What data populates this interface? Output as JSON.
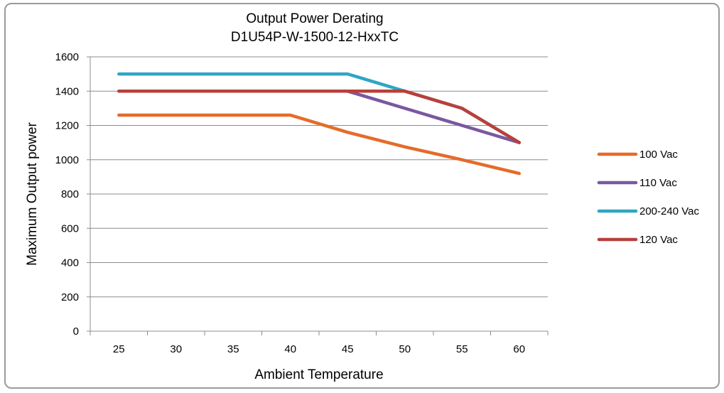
{
  "chart_data": {
    "type": "line",
    "title": "Output Power Derating",
    "subtitle": "D1U54P-W-1500-12-HxxTC",
    "xlabel": "Ambient Temperature",
    "ylabel": "Maximum Output power",
    "categories": [
      "25",
      "30",
      "35",
      "40",
      "45",
      "50",
      "55",
      "60"
    ],
    "ylim": [
      0,
      1600
    ],
    "yticks": [
      "0",
      "200",
      "400",
      "600",
      "800",
      "1000",
      "1200",
      "1400",
      "1600"
    ],
    "grid": "horizontal",
    "legend_position": "right",
    "series": [
      {
        "name": "100 Vac",
        "color": "#E46C2A",
        "values": [
          1260,
          1260,
          1260,
          1260,
          1160,
          1075,
          1000,
          920
        ]
      },
      {
        "name": "110 Vac",
        "color": "#7B57A0",
        "values": [
          1400,
          1400,
          1400,
          1400,
          1400,
          1300,
          1200,
          1100
        ]
      },
      {
        "name": "200-240 Vac",
        "color": "#2FA6C4",
        "values": [
          1500,
          1500,
          1500,
          1500,
          1500,
          1400,
          1300,
          1100
        ]
      },
      {
        "name": "120 Vac",
        "color": "#B8403A",
        "values": [
          1400,
          1400,
          1400,
          1400,
          1400,
          1400,
          1300,
          1100
        ]
      }
    ]
  }
}
